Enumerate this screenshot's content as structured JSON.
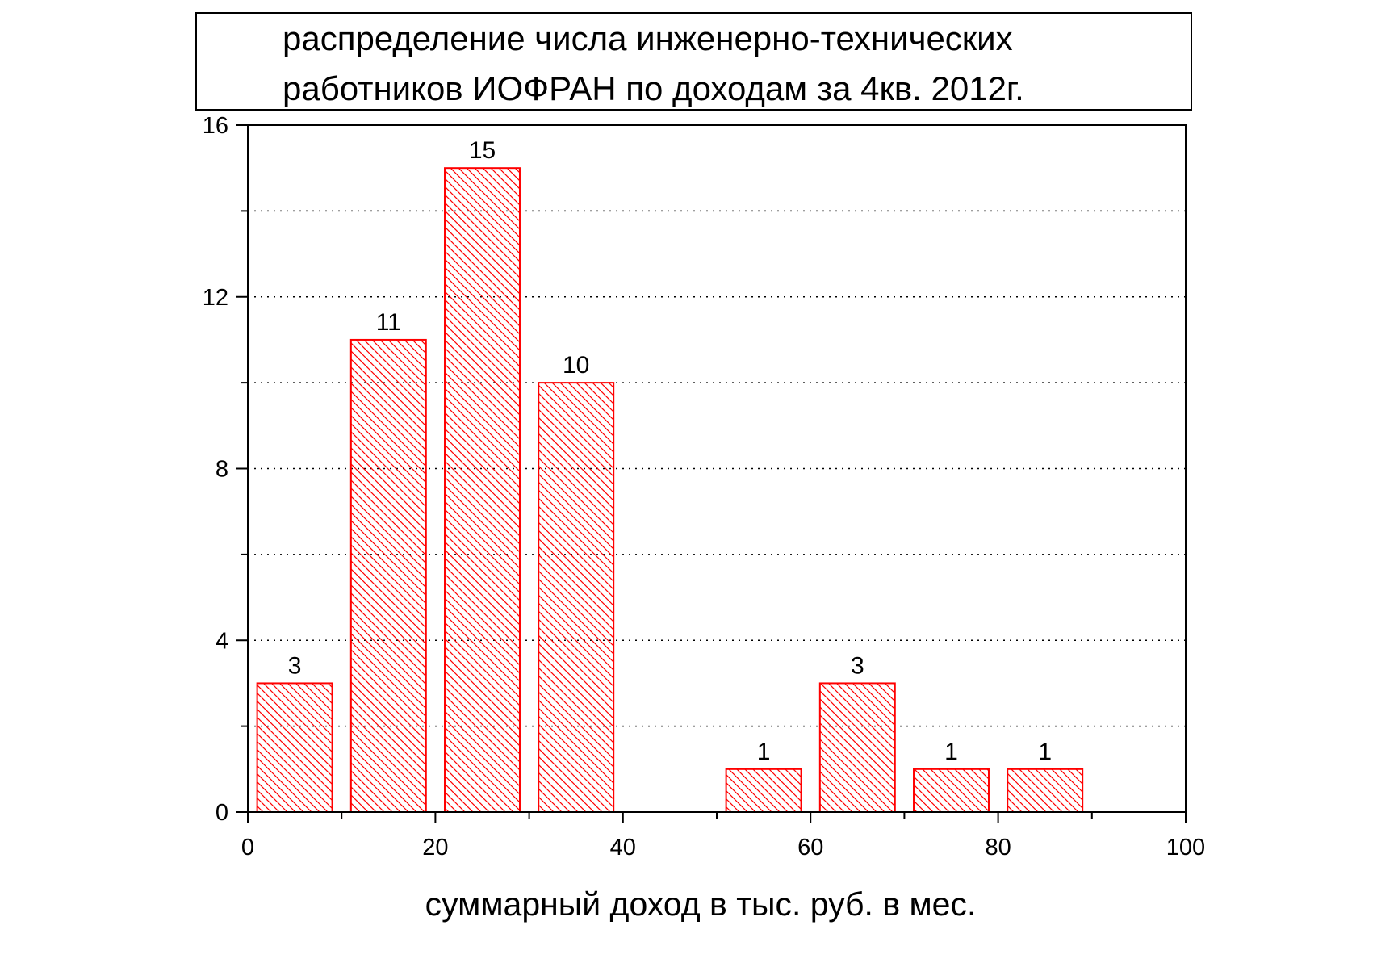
{
  "chart_data": {
    "type": "bar",
    "title_lines": [
      "распределение числа инженерно-технических",
      "работников ИОФРАН по доходам за 4кв. 2012г."
    ],
    "xlabel": "суммарный доход в тыс. руб. в мес.",
    "ylabel": "",
    "xlim": [
      0,
      100
    ],
    "ylim": [
      0,
      16
    ],
    "x_ticks": [
      "0",
      "20",
      "40",
      "60",
      "80",
      "100"
    ],
    "y_ticks": [
      "0",
      "4",
      "8",
      "12",
      "16"
    ],
    "bars": [
      {
        "x_start": 1,
        "x_end": 9,
        "value": 3,
        "label": "3"
      },
      {
        "x_start": 11,
        "x_end": 19,
        "value": 11,
        "label": "11"
      },
      {
        "x_start": 21,
        "x_end": 29,
        "value": 15,
        "label": "15"
      },
      {
        "x_start": 31,
        "x_end": 39,
        "value": 10,
        "label": "10"
      },
      {
        "x_start": 51,
        "x_end": 59,
        "value": 1,
        "label": "1"
      },
      {
        "x_start": 61,
        "x_end": 69,
        "value": 3,
        "label": "3"
      },
      {
        "x_start": 71,
        "x_end": 79,
        "value": 1,
        "label": "1"
      },
      {
        "x_start": 81,
        "x_end": 89,
        "value": 1,
        "label": "1"
      }
    ],
    "grid": "horizontal dotted",
    "bar_color": "#ff0000",
    "bar_fill": "diagonal hatch"
  }
}
